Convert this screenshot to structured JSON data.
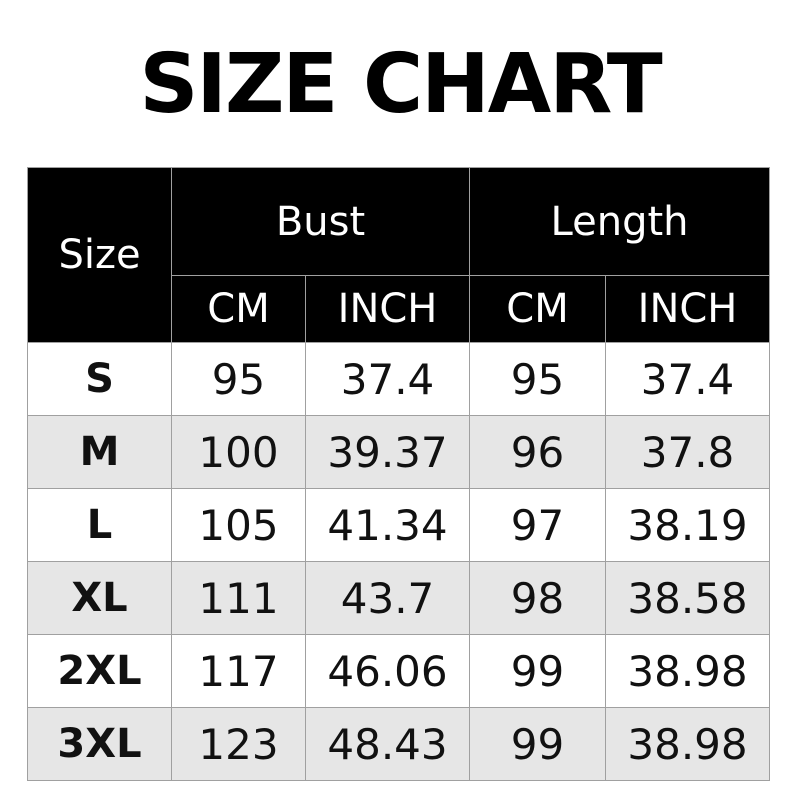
{
  "title": "SIZE CHART",
  "colors": {
    "header_bg": "#000000",
    "header_text": "#ffffff",
    "alt_row": "#e6e6e6",
    "border": "#a0a0a0"
  },
  "header": {
    "size": "Size",
    "bust": "Bust",
    "length": "Length",
    "cm": "CM",
    "inch": "INCH"
  },
  "rows": [
    {
      "size": "S",
      "bust_cm": "95",
      "bust_inch": "37.4",
      "length_cm": "95",
      "length_inch": "37.4"
    },
    {
      "size": "M",
      "bust_cm": "100",
      "bust_inch": "39.37",
      "length_cm": "96",
      "length_inch": "37.8"
    },
    {
      "size": "L",
      "bust_cm": "105",
      "bust_inch": "41.34",
      "length_cm": "97",
      "length_inch": "38.19"
    },
    {
      "size": "XL",
      "bust_cm": "111",
      "bust_inch": "43.7",
      "length_cm": "98",
      "length_inch": "38.58"
    },
    {
      "size": "2XL",
      "bust_cm": "117",
      "bust_inch": "46.06",
      "length_cm": "99",
      "length_inch": "38.98"
    },
    {
      "size": "3XL",
      "bust_cm": "123",
      "bust_inch": "48.43",
      "length_cm": "99",
      "length_inch": "38.98"
    }
  ]
}
